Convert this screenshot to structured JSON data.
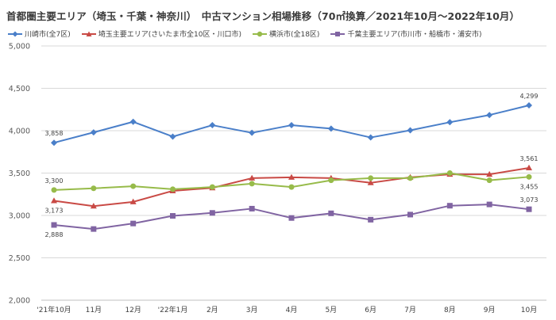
{
  "chart_data": {
    "type": "line",
    "title": "首都圏主要エリア（埼玉・千葉・神奈川）　中古マンション相場推移（70㎡換算／2021年10月〜2022年10月）",
    "categories": [
      "'21年10月",
      "11月",
      "12月",
      "'22年1月",
      "2月",
      "3月",
      "4月",
      "5月",
      "6月",
      "7月",
      "8月",
      "9月",
      "10月"
    ],
    "ylim": [
      2000,
      5000
    ],
    "yticks": [
      "2,000",
      "2,500",
      "3,000",
      "3,500",
      "4,000",
      "4,500",
      "5,000"
    ],
    "ytick_values": [
      2000,
      2500,
      3000,
      3500,
      4000,
      4500,
      5000
    ],
    "grid": true,
    "legend_position": "top-left",
    "series": [
      {
        "name": "川崎市(全7区)",
        "color": "#4a7fc9",
        "marker": "diamond",
        "values": [
          3858,
          3980,
          4105,
          3930,
          4065,
          3975,
          4065,
          4025,
          3920,
          4005,
          4100,
          4185,
          4299
        ],
        "labels": [
          {
            "index": 0,
            "text": "3,858",
            "pos": "above"
          },
          {
            "index": 12,
            "text": "4,299",
            "pos": "above"
          }
        ]
      },
      {
        "name": "埼玉主要エリア(さいたま市全10区・川口市)",
        "color": "#c94a45",
        "marker": "triangle",
        "values": [
          3173,
          3110,
          3160,
          3290,
          3325,
          3440,
          3450,
          3440,
          3385,
          3450,
          3485,
          3485,
          3561
        ],
        "labels": [
          {
            "index": 0,
            "text": "3,173",
            "pos": "below"
          },
          {
            "index": 12,
            "text": "3,561",
            "pos": "above"
          }
        ]
      },
      {
        "name": "横浜市(全18区)",
        "color": "#97bb4a",
        "marker": "circle",
        "values": [
          3300,
          3320,
          3345,
          3310,
          3335,
          3375,
          3335,
          3415,
          3440,
          3440,
          3500,
          3415,
          3455
        ],
        "labels": [
          {
            "index": 0,
            "text": "3,300",
            "pos": "above"
          },
          {
            "index": 12,
            "text": "3,455",
            "pos": "below"
          }
        ]
      },
      {
        "name": "千葉主要エリア(市川市・船橋市・浦安市)",
        "color": "#8064a2",
        "marker": "square",
        "values": [
          2888,
          2840,
          2905,
          2995,
          3030,
          3080,
          2970,
          3025,
          2950,
          3010,
          3115,
          3130,
          3073
        ],
        "labels": [
          {
            "index": 0,
            "text": "2,888",
            "pos": "below"
          },
          {
            "index": 12,
            "text": "3,073",
            "pos": "above"
          }
        ]
      }
    ]
  }
}
